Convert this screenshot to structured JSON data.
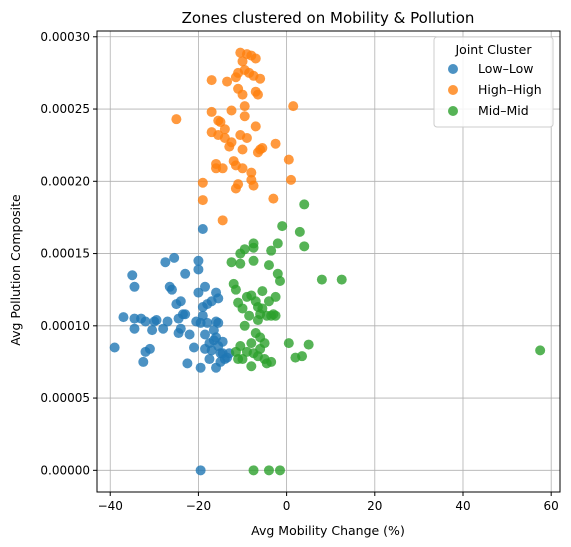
{
  "chart_data": {
    "type": "scatter",
    "title": "Zones clustered on Mobility & Pollution",
    "xlabel": "Avg Mobility Change (%)",
    "ylabel": "Avg Pollution Composite",
    "xlim": [
      -43,
      62
    ],
    "ylim": [
      -1.5e-05,
      0.000304
    ],
    "x_ticks": [
      -40,
      -20,
      0,
      20,
      40,
      60
    ],
    "x_tick_labels": [
      "−40",
      "−20",
      "0",
      "20",
      "40",
      "60"
    ],
    "y_ticks": [
      0,
      5e-05,
      0.0001,
      0.00015,
      0.0002,
      0.00025,
      0.0003
    ],
    "y_tick_labels": [
      "0.00000",
      "0.00005",
      "0.00010",
      "0.00015",
      "0.00020",
      "0.00025",
      "0.00030"
    ],
    "grid": true,
    "legend": {
      "title": "Joint Cluster",
      "placement": "top-right"
    },
    "series": [
      {
        "name": "Low–Low",
        "color": "#1f77b4",
        "points": [
          [
            -39,
            8.5e-05
          ],
          [
            -37,
            0.000106
          ],
          [
            -35,
            0.000135
          ],
          [
            -34.5,
            0.000127
          ],
          [
            -34.5,
            0.000105
          ],
          [
            -34.5,
            9.8e-05
          ],
          [
            -33,
            0.000105
          ],
          [
            -32.5,
            7.5e-05
          ],
          [
            -32,
            8.2e-05
          ],
          [
            -32,
            0.000103
          ],
          [
            -31,
            8.4e-05
          ],
          [
            -30.5,
            9.7e-05
          ],
          [
            -30,
            0.000103
          ],
          [
            -29.5,
            0.000104
          ],
          [
            -28,
            9.8e-05
          ],
          [
            -27.5,
            0.000144
          ],
          [
            -27,
            0.000103
          ],
          [
            -26.5,
            0.000127
          ],
          [
            -26,
            0.000125
          ],
          [
            -25.5,
            0.000147
          ],
          [
            -25,
            0.000115
          ],
          [
            -24.5,
            0.000105
          ],
          [
            -24.5,
            9.5e-05
          ],
          [
            -24,
            9.8e-05
          ],
          [
            -24,
            0.000117
          ],
          [
            -23.5,
            0.000108
          ],
          [
            -23,
            0.000108
          ],
          [
            -23,
            0.000136
          ],
          [
            -22.5,
            7.4e-05
          ],
          [
            -22,
            9.4e-05
          ],
          [
            -21,
            8.5e-05
          ],
          [
            -20.5,
            0.000103
          ],
          [
            -20,
            0.000139
          ],
          [
            -20,
            0.000145
          ],
          [
            -20,
            0.000123
          ],
          [
            -19.5,
            0.000102
          ],
          [
            -19.5,
            7.1e-05
          ],
          [
            -19,
            0.000107
          ],
          [
            -19,
            0.000167
          ],
          [
            -19,
            0.000113
          ],
          [
            -18.5,
            9.4e-05
          ],
          [
            -18.5,
            8.4e-05
          ],
          [
            -18.5,
            0.000127
          ],
          [
            -18,
            0.000115
          ],
          [
            -18,
            0.000102
          ],
          [
            -17.5,
            8.8e-05
          ],
          [
            -17.5,
            7.7e-05
          ],
          [
            -17,
            0.000117
          ],
          [
            -17,
            8.3e-05
          ],
          [
            -16.5,
            9.7e-05
          ],
          [
            -16.5,
            9e-05
          ],
          [
            -16,
            0.000123
          ],
          [
            -16,
            9.2e-05
          ],
          [
            -16,
            0.000103
          ],
          [
            -16,
            7.1e-05
          ],
          [
            -15.5,
            0.000102
          ],
          [
            -15.5,
            0.000119
          ],
          [
            -15.5,
            8.6e-05
          ],
          [
            -15,
            8.1e-05
          ],
          [
            -15,
            7.5e-05
          ],
          [
            -14.5,
            8.1e-05
          ],
          [
            -14.5,
            8.9e-05
          ],
          [
            -14,
            7.7e-05
          ],
          [
            -13.5,
            7.8e-05
          ],
          [
            -13,
            8.1e-05
          ],
          [
            -19.5,
            0.0
          ]
        ]
      },
      {
        "name": "High–High",
        "color": "#ff7f0e",
        "points": [
          [
            -25,
            0.000243
          ],
          [
            -19,
            0.000187
          ],
          [
            -19,
            0.000199
          ],
          [
            -17,
            0.000248
          ],
          [
            -17,
            0.000234
          ],
          [
            -17,
            0.00027
          ],
          [
            -16,
            0.000209
          ],
          [
            -16,
            0.000212
          ],
          [
            -15.5,
            0.000232
          ],
          [
            -15.5,
            0.000242
          ],
          [
            -15,
            0.000241
          ],
          [
            -14.5,
            0.000173
          ],
          [
            -14.5,
            0.000209
          ],
          [
            -14,
            0.000236
          ],
          [
            -14,
            0.00023
          ],
          [
            -13.5,
            0.000269
          ],
          [
            -13,
            0.000224
          ],
          [
            -12.5,
            0.000249
          ],
          [
            -12.5,
            0.000227
          ],
          [
            -12,
            0.000214
          ],
          [
            -11.5,
            0.000272
          ],
          [
            -11.5,
            0.000195
          ],
          [
            -11.5,
            0.000211
          ],
          [
            -11,
            0.000198
          ],
          [
            -11,
            0.000275
          ],
          [
            -11,
            0.000264
          ],
          [
            -10.5,
            0.000289
          ],
          [
            -10.5,
            0.000232
          ],
          [
            -10,
            0.000283
          ],
          [
            -10,
            0.00026
          ],
          [
            -10,
            0.000209
          ],
          [
            -10,
            0.000222
          ],
          [
            -9.5,
            0.000277
          ],
          [
            -9.5,
            0.000252
          ],
          [
            -9.5,
            0.000245
          ],
          [
            -9,
            0.000288
          ],
          [
            -9,
            0.00023
          ],
          [
            -8.5,
            0.000275
          ],
          [
            -8,
            0.000287
          ],
          [
            -8,
            0.000206
          ],
          [
            -8,
            0.000201
          ],
          [
            -7.5,
            0.000273
          ],
          [
            -7.5,
            0.000197
          ],
          [
            -7,
            0.000285
          ],
          [
            -7,
            0.000262
          ],
          [
            -7,
            0.000238
          ],
          [
            -6.5,
            0.00026
          ],
          [
            -6.5,
            0.00022
          ],
          [
            -6,
            0.000222
          ],
          [
            -6,
            0.000271
          ],
          [
            -5.5,
            0.000223
          ],
          [
            -3,
            0.000188
          ],
          [
            -2.5,
            0.000226
          ],
          [
            0.5,
            0.000215
          ],
          [
            1,
            0.000201
          ],
          [
            1.5,
            0.000252
          ]
        ]
      },
      {
        "name": "Mid–Mid",
        "color": "#2ca02c",
        "points": [
          [
            -12.5,
            0.000144
          ],
          [
            -12,
            0.000129
          ],
          [
            -11.5,
            0.000125
          ],
          [
            -11.5,
            8.2e-05
          ],
          [
            -11,
            7.7e-05
          ],
          [
            -11,
            0.000116
          ],
          [
            -10.5,
            0.000143
          ],
          [
            -10.5,
            0.00015
          ],
          [
            -10.5,
            8.6e-05
          ],
          [
            -10,
            7.7e-05
          ],
          [
            -10,
            0.000112
          ],
          [
            -9.5,
            0.000153
          ],
          [
            -9.5,
            0.0001
          ],
          [
            -9,
            0.00012
          ],
          [
            -9,
            8.2e-05
          ],
          [
            -8.5,
            0.000107
          ],
          [
            -8,
            8.8e-05
          ],
          [
            -8,
            7.2e-05
          ],
          [
            -8,
            0.000121
          ],
          [
            -7.5,
            0.000154
          ],
          [
            -7.5,
            0.000145
          ],
          [
            -7.5,
            0.000157
          ],
          [
            -7.5,
            8.1e-05
          ],
          [
            -7,
            9.5e-05
          ],
          [
            -7,
            0.000117
          ],
          [
            -6.5,
            0.000113
          ],
          [
            -6.5,
            0.000104
          ],
          [
            -6.5,
            7.9e-05
          ],
          [
            -6,
            9.2e-05
          ],
          [
            -6,
            8.4e-05
          ],
          [
            -6,
            0.000108
          ],
          [
            -5.5,
            0.000112
          ],
          [
            -5.5,
            0.000124
          ],
          [
            -5,
            8.8e-05
          ],
          [
            -5,
            7.7e-05
          ],
          [
            -4.5,
            0.000107
          ],
          [
            -4.5,
            7.4e-05
          ],
          [
            -4,
            0.000142
          ],
          [
            -4,
            0.000117
          ],
          [
            -3.5,
            0.000152
          ],
          [
            -3.5,
            0.000107
          ],
          [
            -3.5,
            7.5e-05
          ],
          [
            -3,
            0.000108
          ],
          [
            -2.5,
            0.00012
          ],
          [
            -2.5,
            0.000107
          ],
          [
            -2,
            0.000157
          ],
          [
            -2,
            0.000136
          ],
          [
            -1.5,
            0.000131
          ],
          [
            -1,
            0.000169
          ],
          [
            0.5,
            8.8e-05
          ],
          [
            2,
            7.8e-05
          ],
          [
            3,
            0.000165
          ],
          [
            3.5,
            7.9e-05
          ],
          [
            4,
            0.000155
          ],
          [
            4,
            0.000184
          ],
          [
            5,
            8.7e-05
          ],
          [
            8,
            0.000132
          ],
          [
            12.5,
            0.000132
          ],
          [
            57.5,
            8.3e-05
          ],
          [
            -7.5,
            0.0
          ],
          [
            -4,
            0.0
          ],
          [
            -1.5,
            0.0
          ]
        ]
      }
    ]
  }
}
